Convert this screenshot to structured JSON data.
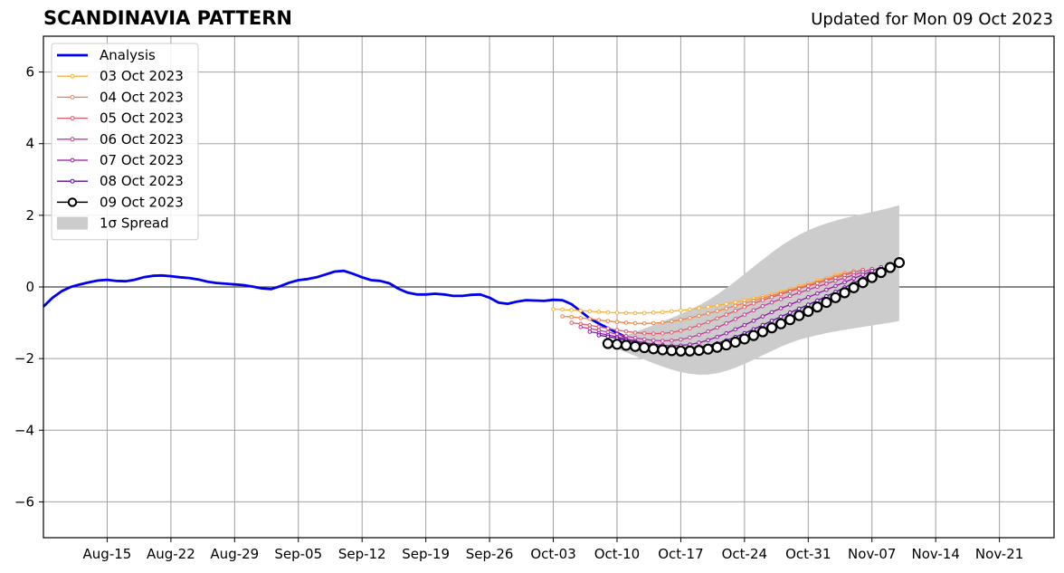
{
  "chart_data": {
    "type": "line",
    "title": "SCANDINAVIA PATTERN",
    "subtitle": "Updated for Mon 09 Oct 2023",
    "xlabel": "",
    "ylabel": "",
    "x_range": [
      "2023-08-08",
      "2023-11-27"
    ],
    "ylim": [
      -7,
      7
    ],
    "yticks": [
      -6,
      -4,
      -2,
      0,
      2,
      4,
      6
    ],
    "xticks": [
      {
        "date": "2023-08-15",
        "label": "Aug-15"
      },
      {
        "date": "2023-08-22",
        "label": "Aug-22"
      },
      {
        "date": "2023-08-29",
        "label": "Aug-29"
      },
      {
        "date": "2023-09-05",
        "label": "Sep-05"
      },
      {
        "date": "2023-09-12",
        "label": "Sep-12"
      },
      {
        "date": "2023-09-19",
        "label": "Sep-19"
      },
      {
        "date": "2023-09-26",
        "label": "Sep-26"
      },
      {
        "date": "2023-10-03",
        "label": "Oct-03"
      },
      {
        "date": "2023-10-10",
        "label": "Oct-10"
      },
      {
        "date": "2023-10-17",
        "label": "Oct-17"
      },
      {
        "date": "2023-10-24",
        "label": "Oct-24"
      },
      {
        "date": "2023-10-31",
        "label": "Oct-31"
      },
      {
        "date": "2023-11-07",
        "label": "Nov-07"
      },
      {
        "date": "2023-11-14",
        "label": "Nov-14"
      },
      {
        "date": "2023-11-21",
        "label": "Nov-21"
      }
    ],
    "grid": true,
    "legend": {
      "position": "top-left"
    },
    "analysis": {
      "name": "Analysis",
      "color": "#0000ee",
      "start": "2023-08-08",
      "values": [
        -0.55,
        -0.3,
        -0.12,
        0.0,
        0.07,
        0.13,
        0.18,
        0.2,
        0.17,
        0.16,
        0.2,
        0.27,
        0.31,
        0.32,
        0.3,
        0.27,
        0.25,
        0.21,
        0.15,
        0.11,
        0.09,
        0.07,
        0.05,
        0.01,
        -0.04,
        -0.06,
        0.02,
        0.12,
        0.19,
        0.22,
        0.27,
        0.35,
        0.43,
        0.45,
        0.37,
        0.27,
        0.19,
        0.17,
        0.1,
        -0.05,
        -0.16,
        -0.21,
        -0.21,
        -0.19,
        -0.21,
        -0.25,
        -0.25,
        -0.22,
        -0.21,
        -0.3,
        -0.44,
        -0.47,
        -0.41,
        -0.37,
        -0.38,
        -0.39,
        -0.36,
        -0.37,
        -0.48,
        -0.68,
        -0.88,
        -1.02,
        -1.15,
        -1.28,
        -1.4
      ]
    },
    "forecasts": [
      {
        "name": "03 Oct 2023",
        "color": "#fcb035",
        "start": "2023-10-03",
        "end": "2023-11-04",
        "values": [
          -0.62,
          -0.72,
          -0.36,
          0.4
        ]
      },
      {
        "name": "04 Oct 2023",
        "color": "#f08348",
        "start": "2023-10-04",
        "end": "2023-11-05",
        "values": [
          -0.82,
          -1.0,
          -0.36,
          0.44
        ]
      },
      {
        "name": "05 Oct 2023",
        "color": "#e2596b",
        "start": "2023-10-05",
        "end": "2023-11-06",
        "values": [
          -1.0,
          -1.28,
          -0.34,
          0.48
        ]
      },
      {
        "name": "06 Oct 2023",
        "color": "#c33d96",
        "start": "2023-10-06",
        "end": "2023-11-07",
        "values": [
          -1.12,
          -1.48,
          -0.4,
          0.5
        ]
      },
      {
        "name": "07 Oct 2023",
        "color": "#9815a6",
        "start": "2023-10-07",
        "end": "2023-11-08",
        "values": [
          -1.25,
          -1.62,
          -0.56,
          0.55
        ]
      },
      {
        "name": "08 Oct 2023",
        "color": "#5b0aa0",
        "start": "2023-10-08",
        "end": "2023-11-09",
        "values": [
          -1.35,
          -1.7,
          -0.68,
          0.6
        ]
      },
      {
        "name": "09 Oct 2023",
        "color": "#000000",
        "start": "2023-10-09",
        "end": "2023-11-10",
        "values": [
          -1.58,
          -1.75,
          -0.76,
          0.68
        ]
      }
    ],
    "spread": {
      "name": "1σ Spread",
      "color": "#cccccc",
      "start": "2023-10-09",
      "end": "2023-11-10",
      "upper": [
        -1.55,
        -0.42,
        1.5,
        2.28
      ],
      "lower": [
        -1.65,
        -2.45,
        -1.45,
        -0.95
      ]
    }
  }
}
